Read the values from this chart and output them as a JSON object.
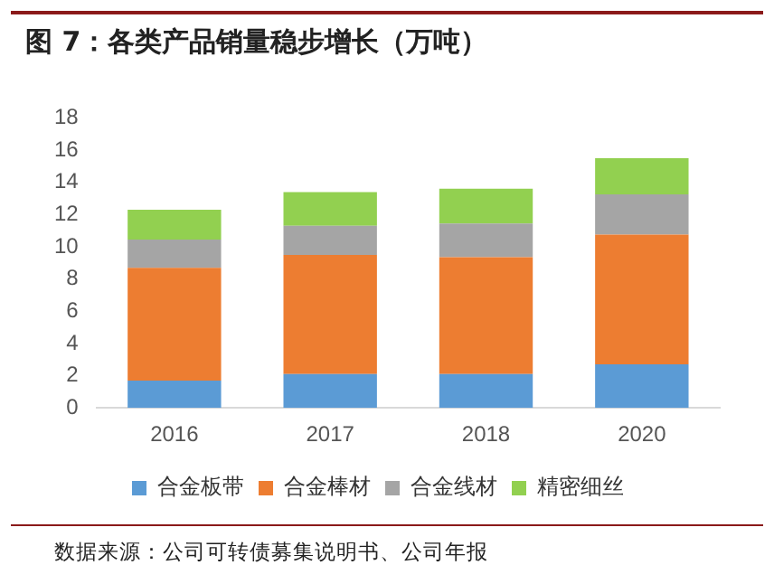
{
  "chart_data": {
    "type": "bar",
    "title": "图 7：各类产品销量稳步增长（万吨）",
    "categories": [
      "2016",
      "2017",
      "2018",
      "2020"
    ],
    "stacked": true,
    "ylim": [
      0,
      18
    ],
    "yticks": [
      0,
      2,
      4,
      6,
      8,
      10,
      12,
      14,
      16,
      18
    ],
    "grid": false,
    "legend": "bottom",
    "annotations": [
      "数据来源：公司可转债募集说明书、公司年报"
    ],
    "series": [
      {
        "name": "合金板带",
        "color": "#5b9bd5",
        "values": [
          1.7,
          2.1,
          2.1,
          2.7
        ]
      },
      {
        "name": "合金棒材",
        "color": "#ed7d31",
        "values": [
          7.0,
          7.4,
          7.25,
          8.05
        ]
      },
      {
        "name": "合金线材",
        "color": "#a5a5a5",
        "values": [
          1.75,
          1.8,
          2.1,
          2.5
        ]
      },
      {
        "name": "精密细丝",
        "color": "#92d050",
        "values": [
          1.85,
          2.1,
          2.15,
          2.25
        ]
      }
    ]
  }
}
